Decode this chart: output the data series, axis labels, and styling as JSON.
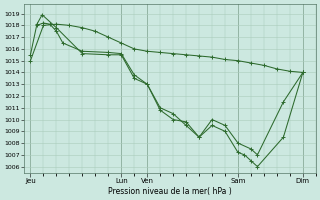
{
  "background_color": "#cce8e0",
  "grid_color": "#aaccbb",
  "line_color": "#2d6a2d",
  "xlabel": "Pression niveau de la mer( hPa )",
  "ylim_low": 1005.5,
  "ylim_high": 1019.8,
  "yticks": [
    1006,
    1007,
    1008,
    1009,
    1010,
    1011,
    1012,
    1013,
    1014,
    1015,
    1016,
    1017,
    1018,
    1019
  ],
  "xtick_positions": [
    0,
    14,
    18,
    32,
    42
  ],
  "xtick_labels": [
    "Jeu",
    "Lun",
    "Ven",
    "Sam",
    "Dim"
  ],
  "xlim_low": -1,
  "xlim_high": 44,
  "vlines": [
    0,
    14,
    18,
    32,
    42
  ],
  "series1_x": [
    0,
    2,
    4,
    6,
    8,
    10,
    12,
    14,
    16,
    18,
    20,
    22,
    24,
    26,
    28,
    30,
    32,
    34,
    36,
    38,
    40,
    42
  ],
  "series1_y": [
    1015.0,
    1018.0,
    1018.1,
    1018.0,
    1017.8,
    1017.5,
    1017.0,
    1016.5,
    1016.0,
    1015.8,
    1015.7,
    1015.6,
    1015.5,
    1015.4,
    1015.3,
    1015.1,
    1015.0,
    1014.8,
    1014.6,
    1014.3,
    1014.1,
    1014.0
  ],
  "series2_x": [
    1,
    2,
    3,
    4,
    5,
    8,
    12,
    14,
    16,
    18,
    20,
    22,
    24,
    26,
    28,
    30,
    32,
    34,
    35,
    39,
    42
  ],
  "series2_y": [
    1018.0,
    1018.2,
    1018.1,
    1017.5,
    1016.5,
    1015.8,
    1015.7,
    1015.6,
    1013.8,
    1013.0,
    1011.0,
    1010.5,
    1009.5,
    1008.5,
    1010.0,
    1009.5,
    1008.0,
    1007.5,
    1007.0,
    1011.5,
    1014.0
  ],
  "series3_x": [
    0,
    1,
    1.8,
    4,
    8,
    12,
    14,
    16,
    18,
    20,
    22,
    24,
    26,
    28,
    30,
    32,
    33,
    34,
    35,
    39,
    42
  ],
  "series3_y": [
    1015.5,
    1018.1,
    1018.9,
    1017.8,
    1015.6,
    1015.5,
    1015.5,
    1013.5,
    1013.0,
    1010.8,
    1010.0,
    1009.8,
    1008.5,
    1009.5,
    1009.0,
    1007.2,
    1007.0,
    1006.5,
    1006.0,
    1008.5,
    1014.0
  ]
}
